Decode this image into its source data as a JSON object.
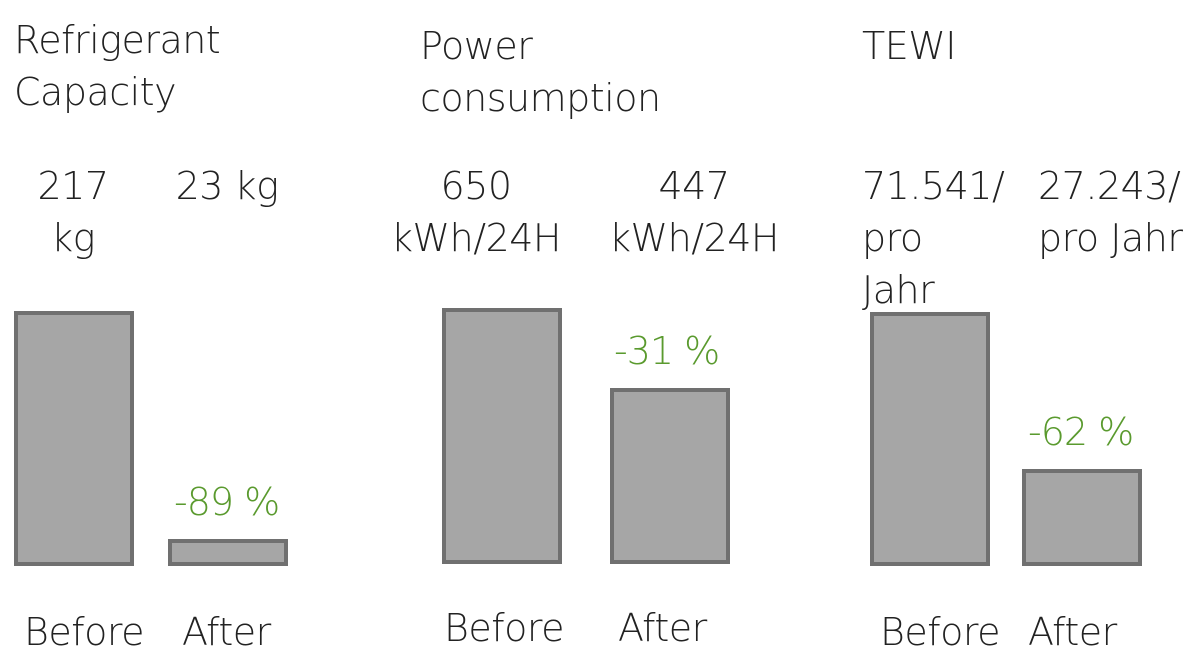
{
  "colors": {
    "bar_fill": "#a6a6a6",
    "bar_border": "#707070",
    "pct_text": "#5a9a2e"
  },
  "chart_data": [
    {
      "type": "bar",
      "title": "Refrigerant\nCapacity",
      "categories": [
        "Before",
        "After"
      ],
      "values": [
        217,
        23
      ],
      "value_labels": [
        "217 kg",
        "23 kg"
      ],
      "change_label": "-89 %",
      "unit": "kg"
    },
    {
      "type": "bar",
      "title": "Power\nconsumption",
      "categories": [
        "Before",
        "After"
      ],
      "values": [
        650,
        447
      ],
      "value_labels": [
        "650\nkWh/24H",
        "447\nkWh/24H"
      ],
      "change_label": "-31 %",
      "unit": "kWh/24H"
    },
    {
      "type": "bar",
      "title": "TEWI",
      "categories": [
        "Before",
        "After"
      ],
      "values": [
        71541,
        27243
      ],
      "value_labels": [
        "71.541/\npro\nJahr",
        "27.243/\npro Jahr"
      ],
      "change_label": "-62 %",
      "unit": "pro Jahr"
    }
  ]
}
